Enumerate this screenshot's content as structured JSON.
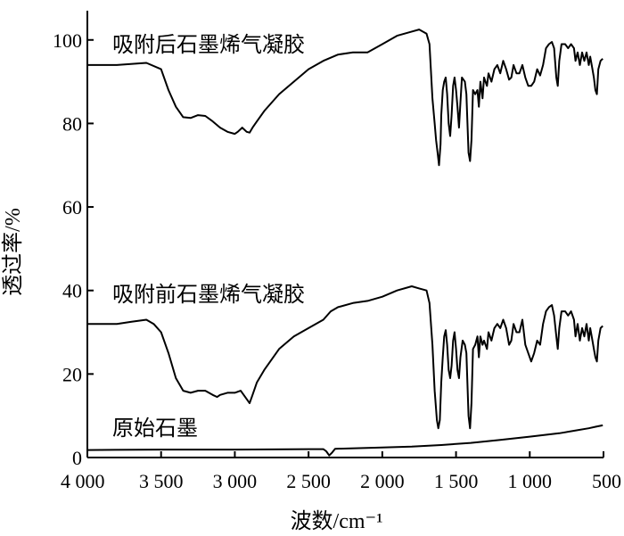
{
  "chart_data": {
    "type": "line",
    "xlabel": "波数/cm⁻¹",
    "ylabel": "透过率/%",
    "xlim": [
      4000,
      500
    ],
    "ylim": [
      0,
      107
    ],
    "x_ticks": [
      4000,
      3500,
      3000,
      2500,
      2000,
      1500,
      1000,
      500
    ],
    "x_tick_labels": [
      "4 000",
      "3 500",
      "3 000",
      "2 500",
      "2 000",
      "1 500",
      "1 000",
      "500"
    ],
    "y_ticks": [
      0,
      20,
      40,
      60,
      80,
      100
    ],
    "y_tick_labels": [
      "0",
      "20",
      "40",
      "60",
      "80",
      "100"
    ],
    "grid": false,
    "legend": "none",
    "annotations": [
      "吸附后石墨烯气凝胶",
      "吸附前石墨烯气凝胶",
      "原始石墨"
    ],
    "series": [
      {
        "name": "吸附后石墨烯气凝胶",
        "points": [
          [
            4000,
            94
          ],
          [
            3800,
            94
          ],
          [
            3600,
            94.5
          ],
          [
            3500,
            93
          ],
          [
            3450,
            88
          ],
          [
            3400,
            84
          ],
          [
            3350,
            81.5
          ],
          [
            3300,
            81.3
          ],
          [
            3250,
            82
          ],
          [
            3200,
            81.8
          ],
          [
            3150,
            80.5
          ],
          [
            3100,
            79
          ],
          [
            3050,
            78
          ],
          [
            3000,
            77.5
          ],
          [
            2980,
            78
          ],
          [
            2950,
            79
          ],
          [
            2920,
            78
          ],
          [
            2900,
            77.8
          ],
          [
            2880,
            79
          ],
          [
            2850,
            80.5
          ],
          [
            2800,
            83
          ],
          [
            2700,
            87
          ],
          [
            2600,
            90
          ],
          [
            2500,
            93
          ],
          [
            2400,
            95
          ],
          [
            2300,
            96.5
          ],
          [
            2200,
            97
          ],
          [
            2100,
            97
          ],
          [
            2000,
            99
          ],
          [
            1900,
            101
          ],
          [
            1800,
            102
          ],
          [
            1750,
            102.5
          ],
          [
            1700,
            101.5
          ],
          [
            1680,
            99
          ],
          [
            1660,
            86
          ],
          [
            1645,
            80
          ],
          [
            1635,
            76
          ],
          [
            1625,
            73
          ],
          [
            1615,
            70
          ],
          [
            1605,
            75
          ],
          [
            1600,
            82
          ],
          [
            1590,
            88
          ],
          [
            1580,
            90
          ],
          [
            1570,
            91
          ],
          [
            1560,
            87
          ],
          [
            1550,
            80
          ],
          [
            1540,
            77
          ],
          [
            1530,
            82
          ],
          [
            1520,
            89
          ],
          [
            1510,
            91
          ],
          [
            1500,
            88
          ],
          [
            1490,
            84
          ],
          [
            1480,
            79
          ],
          [
            1470,
            85
          ],
          [
            1460,
            91
          ],
          [
            1440,
            90
          ],
          [
            1430,
            87
          ],
          [
            1415,
            73
          ],
          [
            1405,
            71
          ],
          [
            1395,
            76
          ],
          [
            1385,
            88
          ],
          [
            1370,
            87
          ],
          [
            1355,
            88
          ],
          [
            1345,
            84
          ],
          [
            1335,
            90
          ],
          [
            1320,
            86
          ],
          [
            1310,
            91
          ],
          [
            1290,
            89
          ],
          [
            1280,
            92
          ],
          [
            1260,
            90
          ],
          [
            1240,
            93
          ],
          [
            1220,
            94
          ],
          [
            1200,
            92
          ],
          [
            1180,
            95
          ],
          [
            1160,
            93
          ],
          [
            1140,
            90.5
          ],
          [
            1125,
            91
          ],
          [
            1110,
            94
          ],
          [
            1090,
            92
          ],
          [
            1070,
            92
          ],
          [
            1050,
            94
          ],
          [
            1030,
            91
          ],
          [
            1010,
            89
          ],
          [
            990,
            89
          ],
          [
            970,
            90
          ],
          [
            950,
            93
          ],
          [
            930,
            91.5
          ],
          [
            910,
            94
          ],
          [
            890,
            98
          ],
          [
            870,
            99
          ],
          [
            850,
            99.5
          ],
          [
            835,
            98
          ],
          [
            820,
            91
          ],
          [
            810,
            89
          ],
          [
            800,
            95
          ],
          [
            785,
            99
          ],
          [
            760,
            99
          ],
          [
            740,
            98
          ],
          [
            720,
            99
          ],
          [
            700,
            98
          ],
          [
            690,
            95
          ],
          [
            675,
            97
          ],
          [
            660,
            94
          ],
          [
            645,
            97
          ],
          [
            630,
            95
          ],
          [
            615,
            97
          ],
          [
            600,
            94
          ],
          [
            590,
            96
          ],
          [
            575,
            93
          ],
          [
            565,
            91
          ],
          [
            555,
            88
          ],
          [
            545,
            87
          ],
          [
            535,
            93
          ],
          [
            520,
            95
          ],
          [
            505,
            95.5
          ]
        ]
      },
      {
        "name": "吸附前石墨烯气凝胶",
        "points": [
          [
            4000,
            32
          ],
          [
            3900,
            32
          ],
          [
            3800,
            32
          ],
          [
            3700,
            32.5
          ],
          [
            3600,
            33
          ],
          [
            3550,
            32
          ],
          [
            3500,
            30
          ],
          [
            3450,
            25
          ],
          [
            3400,
            19
          ],
          [
            3350,
            16
          ],
          [
            3300,
            15.5
          ],
          [
            3250,
            16
          ],
          [
            3200,
            16
          ],
          [
            3150,
            15
          ],
          [
            3120,
            14.5
          ],
          [
            3100,
            15
          ],
          [
            3050,
            15.5
          ],
          [
            3000,
            15.5
          ],
          [
            2960,
            16
          ],
          [
            2940,
            15
          ],
          [
            2920,
            14
          ],
          [
            2900,
            13
          ],
          [
            2880,
            15
          ],
          [
            2850,
            18
          ],
          [
            2800,
            21
          ],
          [
            2700,
            26
          ],
          [
            2600,
            29
          ],
          [
            2500,
            31
          ],
          [
            2400,
            33
          ],
          [
            2350,
            35
          ],
          [
            2300,
            36
          ],
          [
            2200,
            37
          ],
          [
            2100,
            37.5
          ],
          [
            2000,
            38.5
          ],
          [
            1900,
            40
          ],
          [
            1800,
            41
          ],
          [
            1750,
            40.5
          ],
          [
            1700,
            40
          ],
          [
            1680,
            37
          ],
          [
            1660,
            27
          ],
          [
            1645,
            16
          ],
          [
            1630,
            9
          ],
          [
            1620,
            7
          ],
          [
            1610,
            9
          ],
          [
            1600,
            18
          ],
          [
            1590,
            24
          ],
          [
            1580,
            29
          ],
          [
            1570,
            30.5
          ],
          [
            1560,
            27
          ],
          [
            1550,
            21
          ],
          [
            1540,
            19
          ],
          [
            1530,
            22
          ],
          [
            1520,
            28
          ],
          [
            1510,
            30
          ],
          [
            1500,
            26
          ],
          [
            1490,
            21
          ],
          [
            1480,
            19
          ],
          [
            1470,
            24
          ],
          [
            1455,
            28
          ],
          [
            1440,
            27
          ],
          [
            1430,
            25
          ],
          [
            1415,
            10
          ],
          [
            1405,
            7
          ],
          [
            1395,
            13
          ],
          [
            1385,
            26
          ],
          [
            1370,
            27
          ],
          [
            1355,
            29
          ],
          [
            1345,
            24
          ],
          [
            1335,
            29
          ],
          [
            1320,
            27
          ],
          [
            1310,
            28
          ],
          [
            1290,
            26
          ],
          [
            1280,
            30
          ],
          [
            1260,
            28
          ],
          [
            1240,
            31
          ],
          [
            1220,
            32
          ],
          [
            1200,
            31
          ],
          [
            1180,
            33
          ],
          [
            1160,
            31
          ],
          [
            1140,
            27
          ],
          [
            1125,
            28
          ],
          [
            1110,
            32
          ],
          [
            1090,
            30
          ],
          [
            1070,
            30
          ],
          [
            1050,
            33
          ],
          [
            1030,
            27
          ],
          [
            1010,
            25
          ],
          [
            990,
            23
          ],
          [
            970,
            25
          ],
          [
            950,
            28
          ],
          [
            930,
            27
          ],
          [
            910,
            32
          ],
          [
            890,
            35
          ],
          [
            870,
            36
          ],
          [
            850,
            36.5
          ],
          [
            835,
            34
          ],
          [
            820,
            29
          ],
          [
            810,
            26
          ],
          [
            800,
            31
          ],
          [
            785,
            35
          ],
          [
            760,
            35
          ],
          [
            740,
            34
          ],
          [
            720,
            35
          ],
          [
            700,
            33
          ],
          [
            690,
            29
          ],
          [
            675,
            32
          ],
          [
            660,
            28
          ],
          [
            645,
            31
          ],
          [
            630,
            29
          ],
          [
            615,
            32
          ],
          [
            600,
            28
          ],
          [
            590,
            31
          ],
          [
            575,
            28
          ],
          [
            565,
            26
          ],
          [
            555,
            24
          ],
          [
            545,
            23
          ],
          [
            535,
            28
          ],
          [
            520,
            31
          ],
          [
            505,
            31.5
          ]
        ]
      },
      {
        "name": "原始石墨",
        "points": [
          [
            4000,
            1.8
          ],
          [
            3500,
            1.9
          ],
          [
            3000,
            1.9
          ],
          [
            2500,
            2.0
          ],
          [
            2400,
            2.0
          ],
          [
            2380,
            1.5
          ],
          [
            2360,
            0.5
          ],
          [
            2340,
            1.2
          ],
          [
            2320,
            2.1
          ],
          [
            2000,
            2.4
          ],
          [
            1800,
            2.6
          ],
          [
            1600,
            3.0
          ],
          [
            1400,
            3.5
          ],
          [
            1200,
            4.2
          ],
          [
            1000,
            5.0
          ],
          [
            800,
            5.8
          ],
          [
            700,
            6.4
          ],
          [
            600,
            7.0
          ],
          [
            550,
            7.4
          ],
          [
            505,
            7.7
          ]
        ]
      }
    ]
  }
}
